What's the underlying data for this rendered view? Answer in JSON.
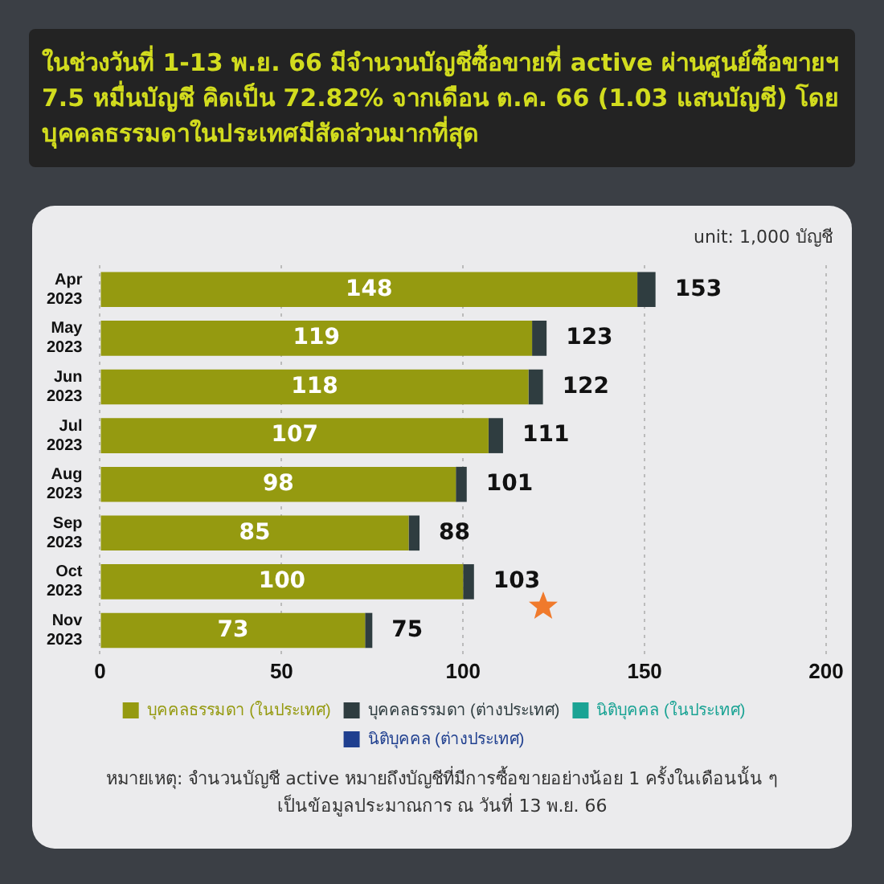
{
  "chart_data": {
    "type": "bar",
    "orientation": "horizontal",
    "stacked": true,
    "title": "ในช่วงวันที่ 1-13 พ.ย. 66 มีจำนวนบัญชีซื้อขายที่ active ผ่านศูนย์ซื้อขายฯ 7.5 หมื่นบัญชี คิดเป็น 72.82% จากเดือน ต.ค. 66 (1.03 แสนบัญชี) โดยบุคคลธรรมดาในประเทศมีสัดส่วนมากที่สุด",
    "categories": [
      "Apr 2023",
      "May 2023",
      "Jun 2023",
      "Jul 2023",
      "Aug 2023",
      "Sep 2023",
      "Oct 2023",
      "Nov 2023"
    ],
    "series": [
      {
        "name": "บุคคลธรรมดา (ในประเทศ)",
        "color": "#959a10",
        "values": [
          148,
          119,
          118,
          107,
          98,
          85,
          100,
          73
        ],
        "value_labels": [
          "148",
          "119",
          "118",
          "107",
          "98",
          "85",
          "100",
          "73"
        ]
      },
      {
        "name": "บุคคลธรรมดา (ต่างประเทศ)",
        "color": "#2f3d40",
        "values": [
          5,
          4,
          4,
          4,
          3,
          3,
          3,
          2
        ]
      },
      {
        "name": "นิติบุคคล (ในประเทศ)",
        "color": "#1aa394",
        "values": [
          null,
          null,
          null,
          null,
          null,
          null,
          null,
          null
        ]
      },
      {
        "name": "นิติบุคคล (ต่างประเทศ)",
        "color": "#1f3f8f",
        "values": [
          null,
          null,
          null,
          null,
          null,
          null,
          null,
          null
        ]
      }
    ],
    "totals": [
      "153",
      "123",
      "122",
      "111",
      "101",
      "88",
      "103",
      "75"
    ],
    "xlim": [
      0,
      200
    ],
    "xticks": [
      0,
      50,
      100,
      150,
      200
    ],
    "grid": "x",
    "legend": "bottom",
    "annotations": [
      "unit: 1,000 บัญชี",
      "หมายเหตุ: จำนวนบัญชี active หมายถึงบัญชีที่มีการซื้อขายอย่างน้อย 1 ครั้งในเดือนนั้น ๆ\nเป็นข้อมูลประมาณการ ณ วันที่ 13 พ.ย. 66"
    ]
  }
}
